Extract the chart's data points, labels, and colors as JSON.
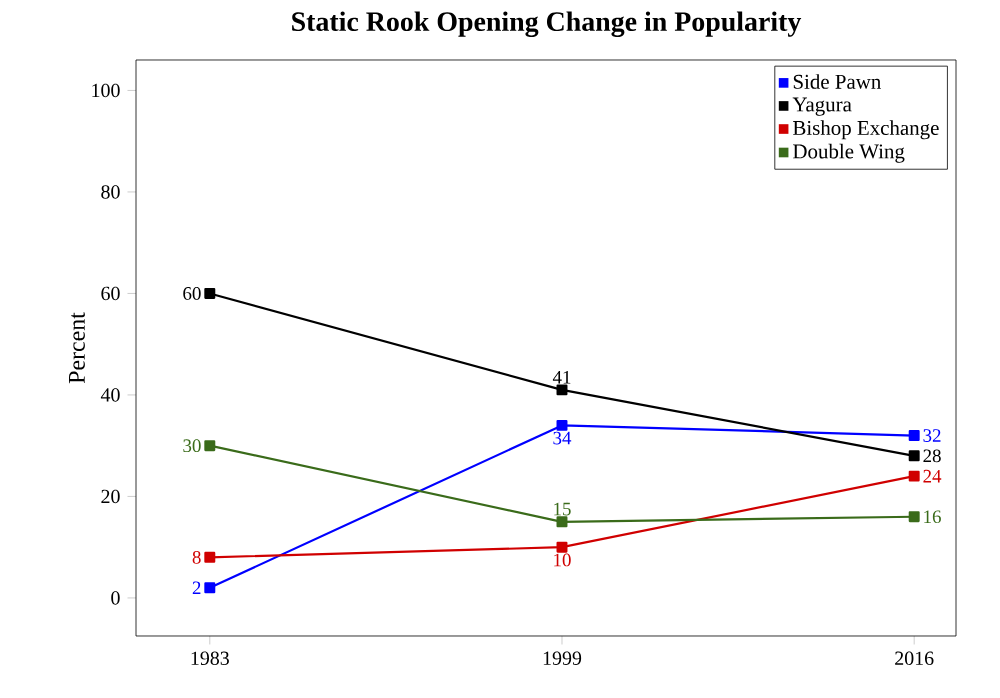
{
  "chart_data": {
    "type": "line",
    "title": "Static Rook Opening Change in Popularity",
    "ylabel": "Percent",
    "categories": [
      "1983",
      "1999",
      "2016"
    ],
    "series": [
      {
        "name": "Side Pawn",
        "color": "#0000ff",
        "values": [
          2,
          34,
          32
        ]
      },
      {
        "name": "Yagura",
        "color": "#000000",
        "values": [
          60,
          41,
          28
        ]
      },
      {
        "name": "Bishop Exchange",
        "color": "#d00000",
        "values": [
          8,
          10,
          24
        ]
      },
      {
        "name": "Double Wing",
        "color": "#3a6b1a",
        "values": [
          30,
          15,
          16
        ]
      }
    ],
    "ylim": [
      -7.5,
      106
    ],
    "yticks": [
      0,
      20,
      40,
      60,
      80,
      100
    ],
    "marker": "square",
    "line_style": "solid",
    "legend": "top right",
    "grid": false,
    "data_labels": true
  }
}
